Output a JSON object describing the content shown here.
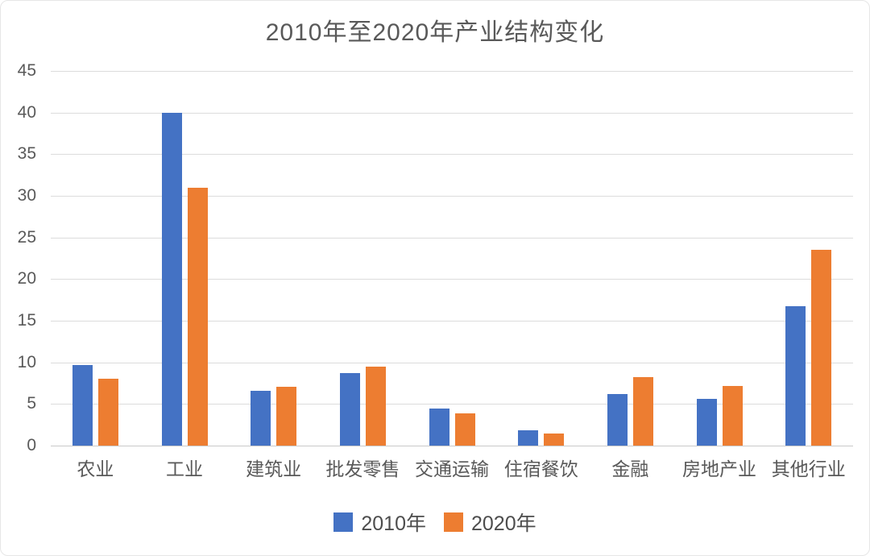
{
  "title": "2010年至2020年产业结构变化",
  "colors": {
    "series_2010": "#4472C4",
    "series_2020": "#ED7D31",
    "gridline": "#DCDCDC",
    "axis_text": "#595959",
    "title_text": "#595959"
  },
  "chart_data": {
    "type": "bar",
    "title": "2010年至2020年产业结构变化",
    "categories": [
      "农业",
      "工业",
      "建筑业",
      "批发零售",
      "交通运输",
      "住宿餐饮",
      "金融",
      "房地产业",
      "其他行业"
    ],
    "series": [
      {
        "name": "2010年",
        "color": "#4472C4",
        "values": [
          9.7,
          40.0,
          6.6,
          8.7,
          4.5,
          1.8,
          6.2,
          5.6,
          16.7
        ]
      },
      {
        "name": "2020年",
        "color": "#ED7D31",
        "values": [
          8.0,
          31.0,
          7.1,
          9.5,
          3.9,
          1.5,
          8.2,
          7.2,
          23.5
        ]
      }
    ],
    "xlabel": "",
    "ylabel": "",
    "ylim": [
      0,
      45
    ],
    "yticks": [
      0,
      5,
      10,
      15,
      20,
      25,
      30,
      35,
      40,
      45
    ],
    "grid": "horizontal",
    "legend_position": "bottom",
    "legend_labels": [
      "2010年",
      "2020年"
    ]
  }
}
